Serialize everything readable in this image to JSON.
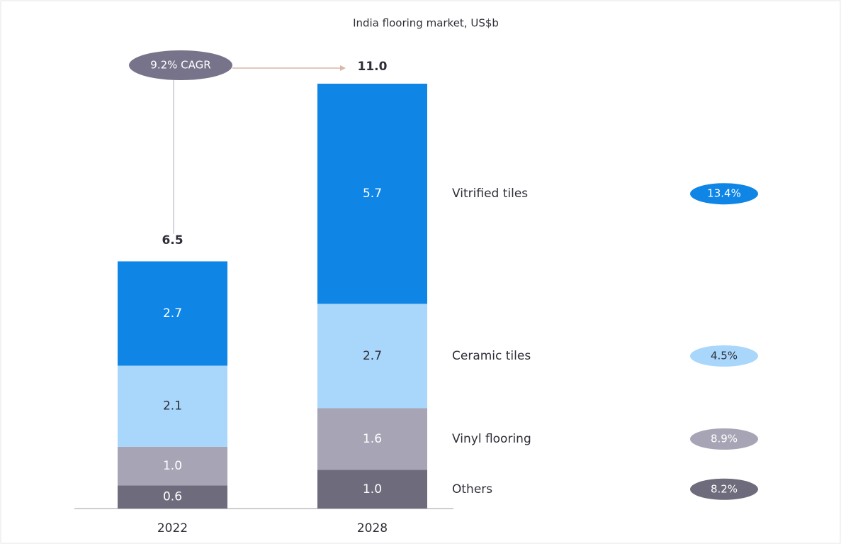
{
  "chart_data": {
    "type": "bar",
    "stacked": true,
    "title": "India flooring market, US$b",
    "categories": [
      "2022",
      "2028"
    ],
    "series": [
      {
        "name": "Others",
        "color": "#6e6c7c",
        "values": [
          0.6,
          1.0
        ],
        "value_labels": [
          "0.6",
          "1.0"
        ],
        "cagr": "8.2%"
      },
      {
        "name": "Vinyl flooring",
        "color": "#a7a4b5",
        "values": [
          1.0,
          1.6
        ],
        "value_labels": [
          "1.0",
          "1.6"
        ],
        "cagr": "8.9%"
      },
      {
        "name": "Ceramic tiles",
        "color": "#a9d7fb",
        "values": [
          2.1,
          2.7
        ],
        "value_labels": [
          "2.1",
          "2.7"
        ],
        "cagr": "4.5%"
      },
      {
        "name": "Vitrified tiles",
        "color": "#0f85e6",
        "values": [
          2.7,
          5.7
        ],
        "value_labels": [
          "2.7",
          "5.7"
        ],
        "cagr": "13.4%"
      }
    ],
    "totals": {
      "values": [
        6.5,
        11.0
      ],
      "value_labels": [
        "6.5",
        "11.0"
      ]
    },
    "annotation": "9.2% CAGR"
  }
}
